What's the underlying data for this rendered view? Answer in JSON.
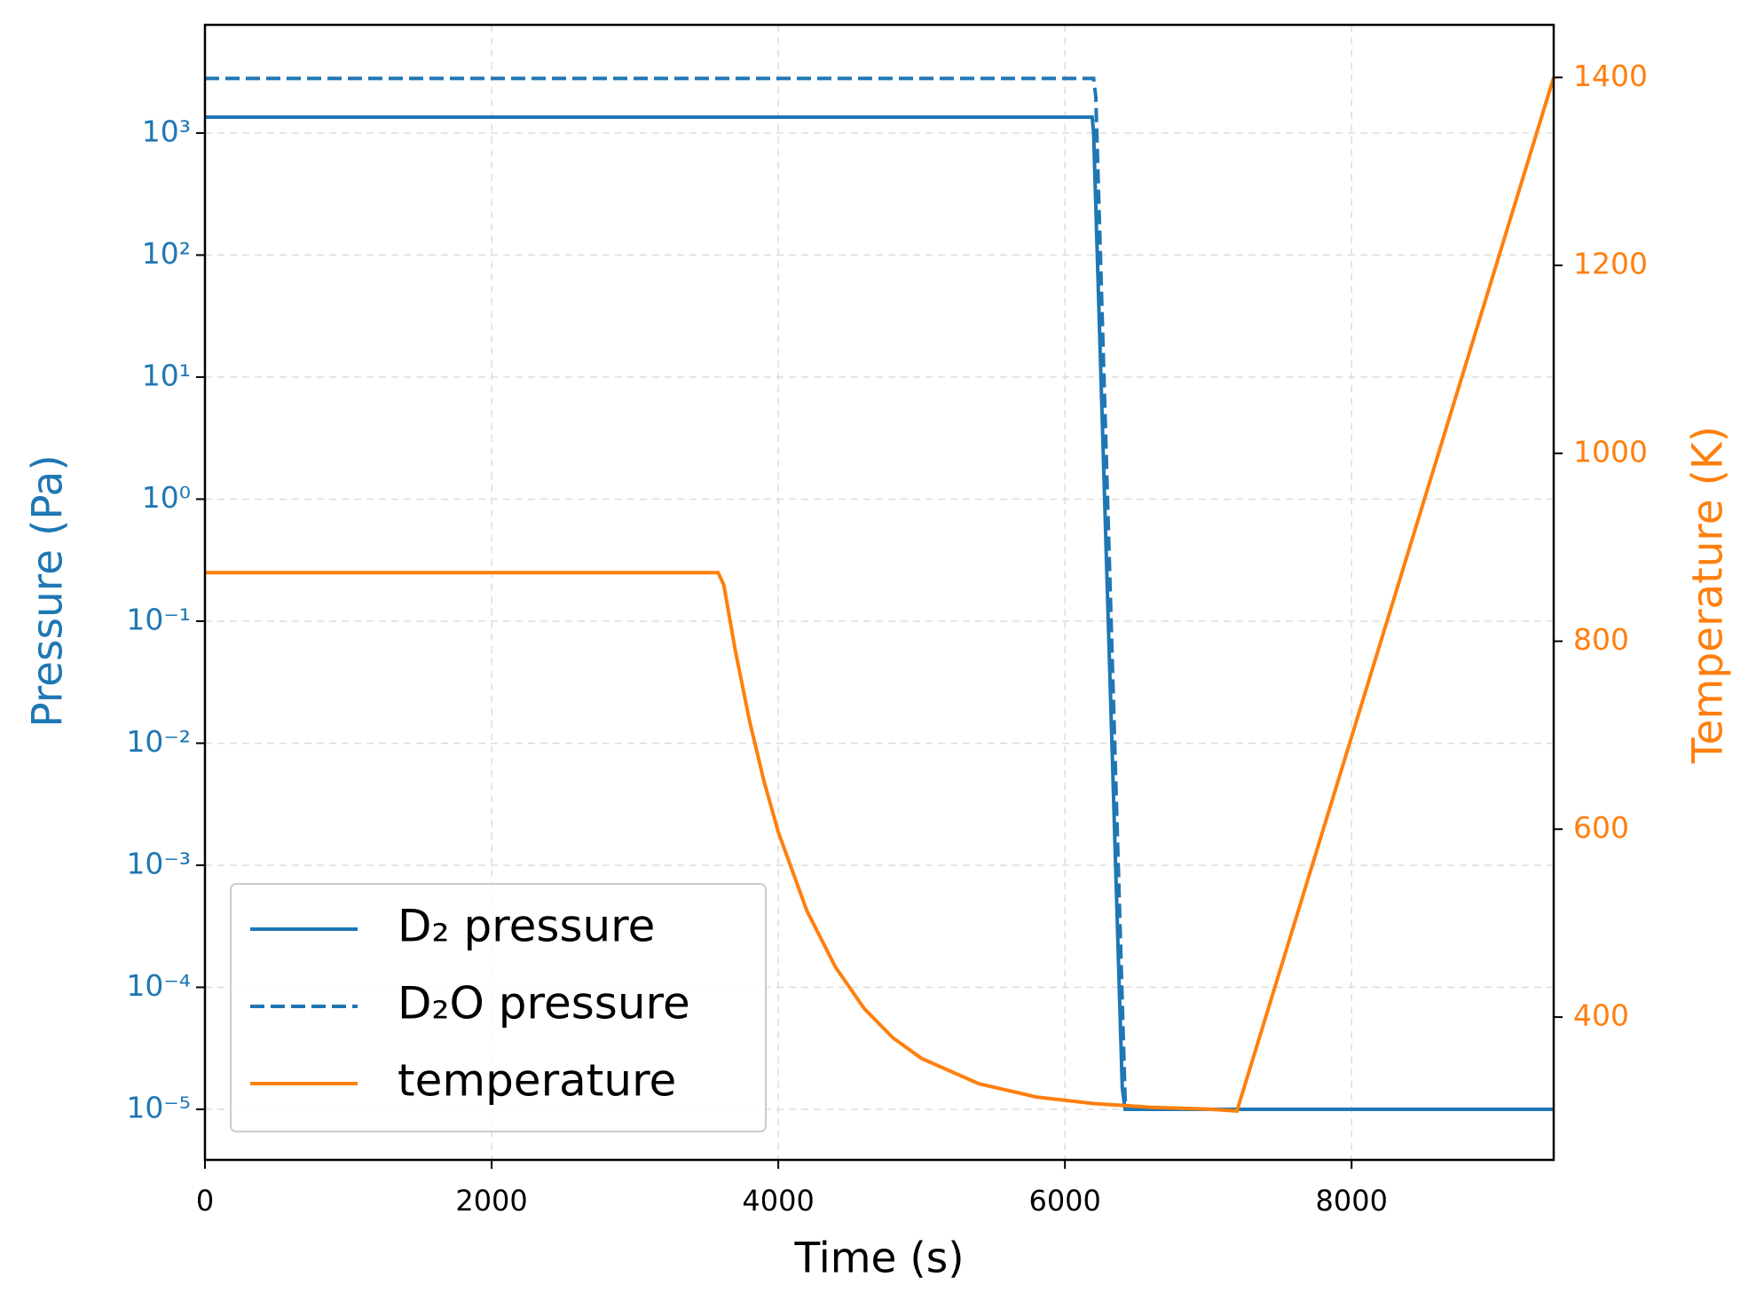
{
  "chart_data": {
    "type": "line",
    "xlabel": "Time (s)",
    "ylabel": "Pressure (Pa)",
    "y2label": "Temperature (K)",
    "xlim": [
      0,
      9410
    ],
    "xticks": [
      0,
      2000,
      4000,
      6000,
      8000
    ],
    "ylim": [
      3.85e-06,
      7700
    ],
    "yscale": "log",
    "yticks": [
      {
        "value": 1e-05,
        "label": "10⁻⁵"
      },
      {
        "value": 0.0001,
        "label": "10⁻⁴"
      },
      {
        "value": 0.001,
        "label": "10⁻³"
      },
      {
        "value": 0.01,
        "label": "10⁻²"
      },
      {
        "value": 0.1,
        "label": "10⁻¹"
      },
      {
        "value": 1,
        "label": "10⁰"
      },
      {
        "value": 10,
        "label": "10¹"
      },
      {
        "value": 100,
        "label": "10²"
      },
      {
        "value": 1000,
        "label": "10³"
      }
    ],
    "y2lim": [
      248,
      1456
    ],
    "y2ticks": [
      400,
      600,
      800,
      1000,
      1200,
      1400
    ],
    "grid": true,
    "legend": "lower left",
    "series": [
      {
        "name": "D₂ pressure",
        "color": "#1f77b4",
        "dash": "solid",
        "x": [
          0,
          6190,
          6200,
          6400,
          6420,
          9410
        ],
        "values": [
          1350,
          1350,
          1000,
          1.5e-05,
          1e-05,
          1e-05
        ]
      },
      {
        "name": "D₂O pressure",
        "color": "#1f77b4",
        "dash": "dashed",
        "x": [
          0,
          6200,
          6215,
          6420,
          6440,
          9410
        ],
        "values": [
          2800,
          2800,
          2000,
          1.2e-05,
          1e-05,
          1e-05
        ]
      },
      {
        "name": "temperature",
        "color": "#ff7f0e",
        "dash": "solid",
        "axis": "y2",
        "x": [
          0,
          3580,
          3620,
          3700,
          3800,
          3900,
          4000,
          4200,
          4400,
          4600,
          4800,
          5000,
          5400,
          5800,
          6200,
          6600,
          7000,
          7200,
          9410
        ],
        "values": [
          873,
          873,
          860,
          790,
          715,
          651,
          597,
          513,
          453,
          409,
          378,
          356,
          329,
          315,
          308,
          304,
          302,
          300,
          1400
        ]
      }
    ]
  }
}
